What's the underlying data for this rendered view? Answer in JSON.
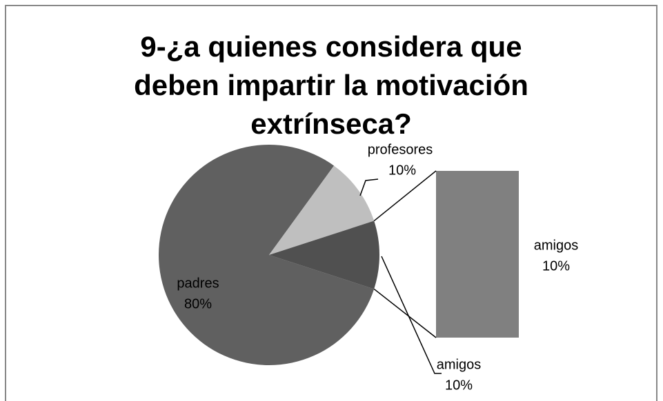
{
  "chart_data": {
    "type": "bar-of-pie",
    "title": "9-¿a quienes considera que deben impartir la motivación extrínseca?",
    "categories": [
      "padres",
      "profesores",
      "amigos"
    ],
    "values": [
      80,
      10,
      10
    ],
    "value_labels": [
      "80%",
      "10%",
      "10%"
    ],
    "colors": [
      "#606060",
      "#bfbfbf",
      "#505050"
    ],
    "secondary": {
      "categories": [
        "amigos"
      ],
      "values": [
        10
      ],
      "value_labels": [
        "10%"
      ],
      "color": "#808080"
    }
  }
}
